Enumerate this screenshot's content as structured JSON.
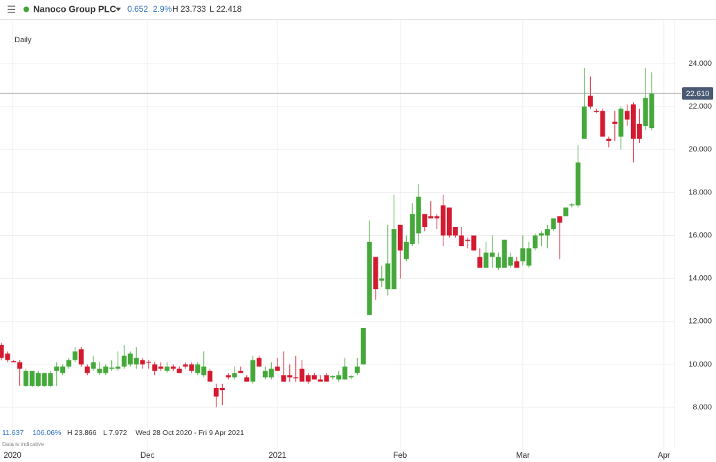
{
  "header": {
    "title": "Nanoco Group PLC",
    "change": "0.652",
    "change_pct": "2.9%",
    "high": "H 23.733",
    "low": "L 22.418"
  },
  "chart_data": {
    "type": "candlestick",
    "interval": "Daily",
    "up_color": "#45a83a",
    "down_color": "#d41a30",
    "open": [
      10.9,
      10.5,
      10.15,
      10.1,
      9.0,
      9.0,
      9.0,
      9.0,
      9.0,
      9.7,
      9.6,
      9.9,
      10.2,
      10.7,
      9.9,
      9.8,
      9.6,
      9.6,
      9.8,
      9.8,
      9.9,
      10.0,
      10.0,
      10.2,
      10.12,
      10.0,
      9.9,
      9.7,
      9.9,
      9.8,
      10.0,
      10.0,
      9.6,
      9.5,
      9.7,
      8.9,
      8.9,
      9.5,
      9.4,
      9.7,
      9.4,
      9.2,
      10.3,
      9.4,
      9.4,
      9.9,
      9.5,
      9.5,
      9.4,
      9.8,
      9.5,
      9.5,
      9.3,
      9.5,
      9.4,
      9.3,
      9.3,
      9.4,
      9.6,
      10.0,
      12.3,
      15.0,
      13.9,
      13.5,
      13.5,
      16.5,
      14.9,
      15.6,
      16.1,
      17.0,
      16.9,
      16.9,
      17.4,
      17.3,
      16.4,
      16.0,
      15.8,
      16.0,
      15.0,
      14.5,
      15.0,
      14.5,
      14.5,
      14.6,
      14.8,
      14.8,
      14.6,
      15.4,
      16.0,
      16.0,
      16.3,
      16.9,
      16.9,
      17.4,
      17.4,
      20.5,
      22.5,
      21.8,
      21.8,
      20.5,
      21.3,
      20.6,
      21.8,
      22.1,
      21.2,
      21.1,
      21.0
    ],
    "high": [
      11.0,
      10.6,
      10.2,
      10.2,
      9.8,
      9.7,
      9.7,
      9.6,
      9.7,
      10.1,
      10.0,
      10.3,
      10.8,
      10.8,
      10.0,
      10.4,
      10.1,
      10.0,
      10.2,
      10.6,
      10.9,
      10.6,
      10.8,
      10.3,
      10.2,
      10.1,
      10.1,
      10.1,
      10.0,
      9.9,
      10.1,
      10.1,
      10.1,
      10.6,
      9.8,
      9.1,
      9.1,
      9.6,
      9.9,
      9.9,
      9.5,
      10.4,
      10.4,
      9.9,
      10.1,
      10.3,
      10.6,
      10.0,
      10.4,
      10.2,
      9.6,
      9.6,
      9.5,
      9.6,
      9.5,
      9.7,
      10.3,
      9.5,
      10.3,
      11.7,
      16.7,
      15.0,
      14.6,
      16.5,
      17.9,
      16.5,
      16.0,
      17.5,
      18.4,
      17.0,
      17.6,
      17.0,
      17.9,
      17.3,
      16.4,
      16.4,
      15.9,
      16.0,
      15.4,
      15.7,
      16.0,
      15.2,
      15.8,
      15.2,
      15.0,
      16.0,
      15.7,
      16.1,
      16.2,
      16.5,
      16.8,
      16.9,
      17.3,
      17.5,
      20.2,
      23.8,
      23.4,
      21.9,
      21.9,
      20.6,
      21.8,
      22.0,
      22.1,
      22.2,
      21.9,
      23.8,
      23.6
    ],
    "low": [
      10.2,
      10.1,
      10.1,
      9.0,
      8.95,
      8.95,
      8.95,
      8.95,
      8.95,
      9.0,
      9.5,
      9.8,
      10.1,
      9.9,
      9.5,
      9.7,
      9.5,
      9.5,
      9.7,
      9.7,
      9.8,
      9.9,
      9.8,
      9.8,
      9.8,
      9.5,
      9.7,
      9.6,
      9.7,
      9.6,
      9.8,
      9.6,
      9.5,
      9.4,
      9.2,
      8.0,
      8.1,
      9.3,
      9.3,
      9.6,
      9.2,
      9.1,
      9.9,
      9.3,
      9.3,
      9.7,
      9.2,
      9.2,
      9.2,
      9.2,
      9.1,
      9.3,
      9.2,
      9.2,
      9.3,
      9.2,
      9.3,
      9.3,
      9.5,
      10.0,
      12.3,
      13.0,
      13.6,
      13.2,
      13.5,
      14.0,
      14.8,
      15.5,
      15.6,
      16.2,
      16.8,
      16.3,
      15.5,
      15.9,
      15.9,
      15.5,
      15.4,
      15.3,
      14.5,
      14.5,
      14.5,
      14.4,
      14.5,
      14.5,
      14.5,
      14.6,
      14.5,
      15.3,
      15.5,
      15.4,
      16.2,
      14.9,
      16.9,
      17.3,
      17.3,
      20.5,
      21.9,
      21.7,
      20.6,
      20.1,
      20.4,
      20.0,
      21.1,
      19.4,
      20.3,
      20.9,
      20.9
    ],
    "close": [
      10.3,
      10.2,
      10.1,
      9.8,
      9.7,
      9.7,
      9.6,
      9.6,
      9.6,
      9.9,
      9.9,
      10.2,
      10.6,
      10.0,
      9.6,
      10.1,
      9.8,
      9.9,
      9.85,
      9.9,
      10.4,
      10.5,
      10.3,
      10.0,
      10.08,
      9.7,
      9.8,
      9.9,
      9.8,
      9.6,
      9.9,
      9.7,
      10.0,
      9.9,
      9.2,
      8.5,
      8.8,
      9.4,
      9.6,
      9.6,
      9.2,
      10.2,
      9.9,
      9.7,
      9.8,
      9.7,
      9.2,
      9.4,
      9.35,
      9.2,
      9.2,
      9.3,
      9.2,
      9.2,
      9.45,
      9.5,
      9.9,
      9.45,
      9.9,
      11.7,
      15.7,
      13.5,
      14.0,
      14.7,
      16.3,
      15.3,
      15.7,
      17.0,
      17.8,
      16.4,
      16.8,
      16.8,
      16.0,
      16.0,
      16.0,
      15.5,
      15.75,
      15.3,
      14.5,
      15.2,
      15.2,
      15.0,
      15.8,
      15.0,
      14.5,
      15.4,
      15.4,
      16.0,
      16.1,
      16.3,
      16.8,
      16.6,
      17.3,
      17.45,
      19.4,
      22.0,
      22.0,
      21.75,
      20.6,
      20.4,
      21.2,
      21.9,
      21.4,
      20.5,
      20.5,
      22.4,
      22.61
    ],
    "last": {
      "value": 22.61,
      "label": "22.610"
    },
    "ylim": [
      6.1,
      26.06
    ],
    "yticks": [
      {
        "value": 8,
        "label": "8.000"
      },
      {
        "value": 10,
        "label": "10.000"
      },
      {
        "value": 12,
        "label": "12.000"
      },
      {
        "value": 14,
        "label": "14.000"
      },
      {
        "value": 16,
        "label": "16.000"
      },
      {
        "value": 18,
        "label": "18.000"
      },
      {
        "value": 20,
        "label": "20.000"
      },
      {
        "value": 22,
        "label": "22.000"
      },
      {
        "value": 24,
        "label": "24.000"
      }
    ],
    "xlim": [
      -0.23,
      109.72
    ],
    "xticks": [
      {
        "value": 1.8,
        "label": "2020"
      },
      {
        "value": 23.8,
        "label": "Dec"
      },
      {
        "value": 45,
        "label": "2021"
      },
      {
        "value": 65,
        "label": "Feb"
      },
      {
        "value": 85,
        "label": "Mar"
      },
      {
        "value": 108,
        "label": "Apr"
      }
    ],
    "grid": true,
    "stats": {
      "change": "11.637",
      "change_pct": "106.06%",
      "high": "H 23.866",
      "low": "L 7.972",
      "range": "Wed 28 Oct 2020 - Fri 9 Apr 2021",
      "note": "Data is indicative"
    }
  }
}
